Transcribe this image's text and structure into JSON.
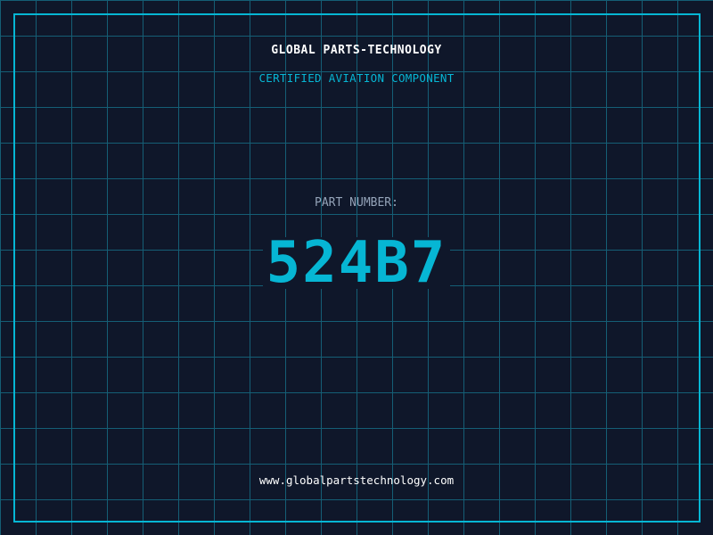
{
  "header": {
    "company": "GLOBAL PARTS-TECHNOLOGY",
    "subtitle": "CERTIFIED AVIATION COMPONENT"
  },
  "part": {
    "label": "PART NUMBER:",
    "number": "524B7"
  },
  "footer": {
    "url": "www.globalpartstechnology.com"
  },
  "colors": {
    "background": "#0f172a",
    "accent": "#06b6d4",
    "grid": "#155e75"
  }
}
